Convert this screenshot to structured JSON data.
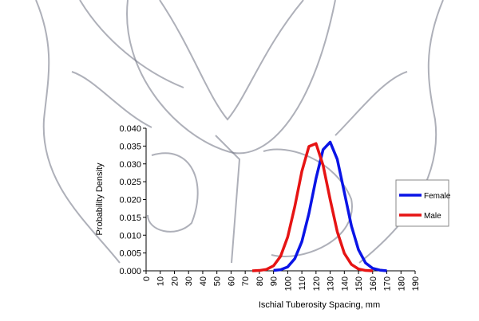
{
  "chart_data": {
    "type": "line",
    "xlabel": "Ischial Tuberosity Spacing, mm",
    "ylabel": "Probability Density",
    "xlim": [
      0,
      190
    ],
    "xticks": [
      0,
      10,
      20,
      30,
      40,
      50,
      60,
      70,
      80,
      90,
      100,
      110,
      120,
      130,
      140,
      150,
      160,
      170,
      180,
      190
    ],
    "ylim": [
      0,
      0.04
    ],
    "yticks": [
      {
        "value": 0,
        "label": "0.000"
      },
      {
        "value": 0.005,
        "label": "0.005"
      },
      {
        "value": 0.01,
        "label": "0.010"
      },
      {
        "value": 0.015,
        "label": "0.015"
      },
      {
        "value": 0.02,
        "label": "0.020"
      },
      {
        "value": 0.025,
        "label": "0.025"
      },
      {
        "value": 0.03,
        "label": "0.030"
      },
      {
        "value": 0.035,
        "label": "0.035"
      },
      {
        "value": 0.04,
        "label": "0.040"
      }
    ],
    "legend": "right",
    "series": [
      {
        "name": "Female",
        "color": "#0a14e6",
        "x": [
          90,
          95,
          100,
          105,
          110,
          115,
          120,
          125,
          130,
          135,
          140,
          145,
          150,
          155,
          160,
          165,
          170
        ],
        "values": [
          0.0001,
          0.0003,
          0.0011,
          0.0034,
          0.0082,
          0.0161,
          0.0259,
          0.034,
          0.0361,
          0.0313,
          0.022,
          0.0126,
          0.0059,
          0.0022,
          0.0007,
          0.0002,
          0
        ]
      },
      {
        "name": "Male",
        "color": "#e61414",
        "x": [
          75,
          80,
          85,
          90,
          95,
          100,
          105,
          110,
          115,
          120,
          125,
          130,
          135,
          140,
          145,
          150,
          155,
          160
        ],
        "values": [
          0,
          0.0001,
          0.0004,
          0.0014,
          0.0041,
          0.0095,
          0.018,
          0.0279,
          0.0349,
          0.0357,
          0.0296,
          0.02,
          0.011,
          0.0049,
          0.0018,
          0.0005,
          0.0001,
          0
        ]
      }
    ]
  }
}
